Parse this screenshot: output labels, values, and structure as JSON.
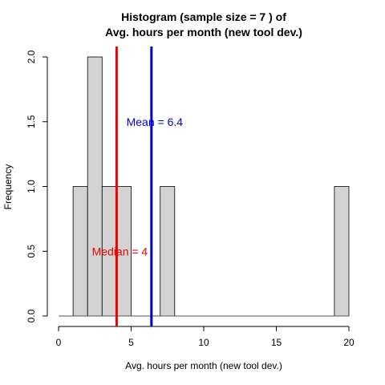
{
  "chart_data": {
    "type": "bar",
    "title_line1": "Histogram (sample size =  7 ) of",
    "title_line2": "Avg. hours per month (new tool dev.)",
    "xlabel": "Avg. hours per month (new tool dev.)",
    "ylabel": "Frequency",
    "xlim": [
      0,
      20
    ],
    "ylim": [
      0,
      2
    ],
    "x_ticks": [
      "0",
      "5",
      "10",
      "15",
      "20"
    ],
    "y_ticks": [
      "0.0",
      "0.5",
      "1.0",
      "1.5",
      "2.0"
    ],
    "bins": [
      {
        "start": 1,
        "end": 2,
        "count": 1
      },
      {
        "start": 2,
        "end": 3,
        "count": 2
      },
      {
        "start": 3,
        "end": 4,
        "count": 1
      },
      {
        "start": 4,
        "end": 5,
        "count": 1
      },
      {
        "start": 7,
        "end": 8,
        "count": 1
      },
      {
        "start": 19,
        "end": 20,
        "count": 1
      }
    ],
    "baseline_range": [
      0,
      20
    ],
    "bar_fill": "#d3d3d3",
    "bar_stroke": "#000000",
    "median": {
      "value": 4,
      "label": "Median = 4",
      "color": "#ee0000",
      "label_y": 0.5
    },
    "mean": {
      "value": 6.4,
      "label": "Mean = 6.4",
      "color": "#0000cc",
      "label_y": 1.5
    },
    "grid": false,
    "legend": "none"
  }
}
